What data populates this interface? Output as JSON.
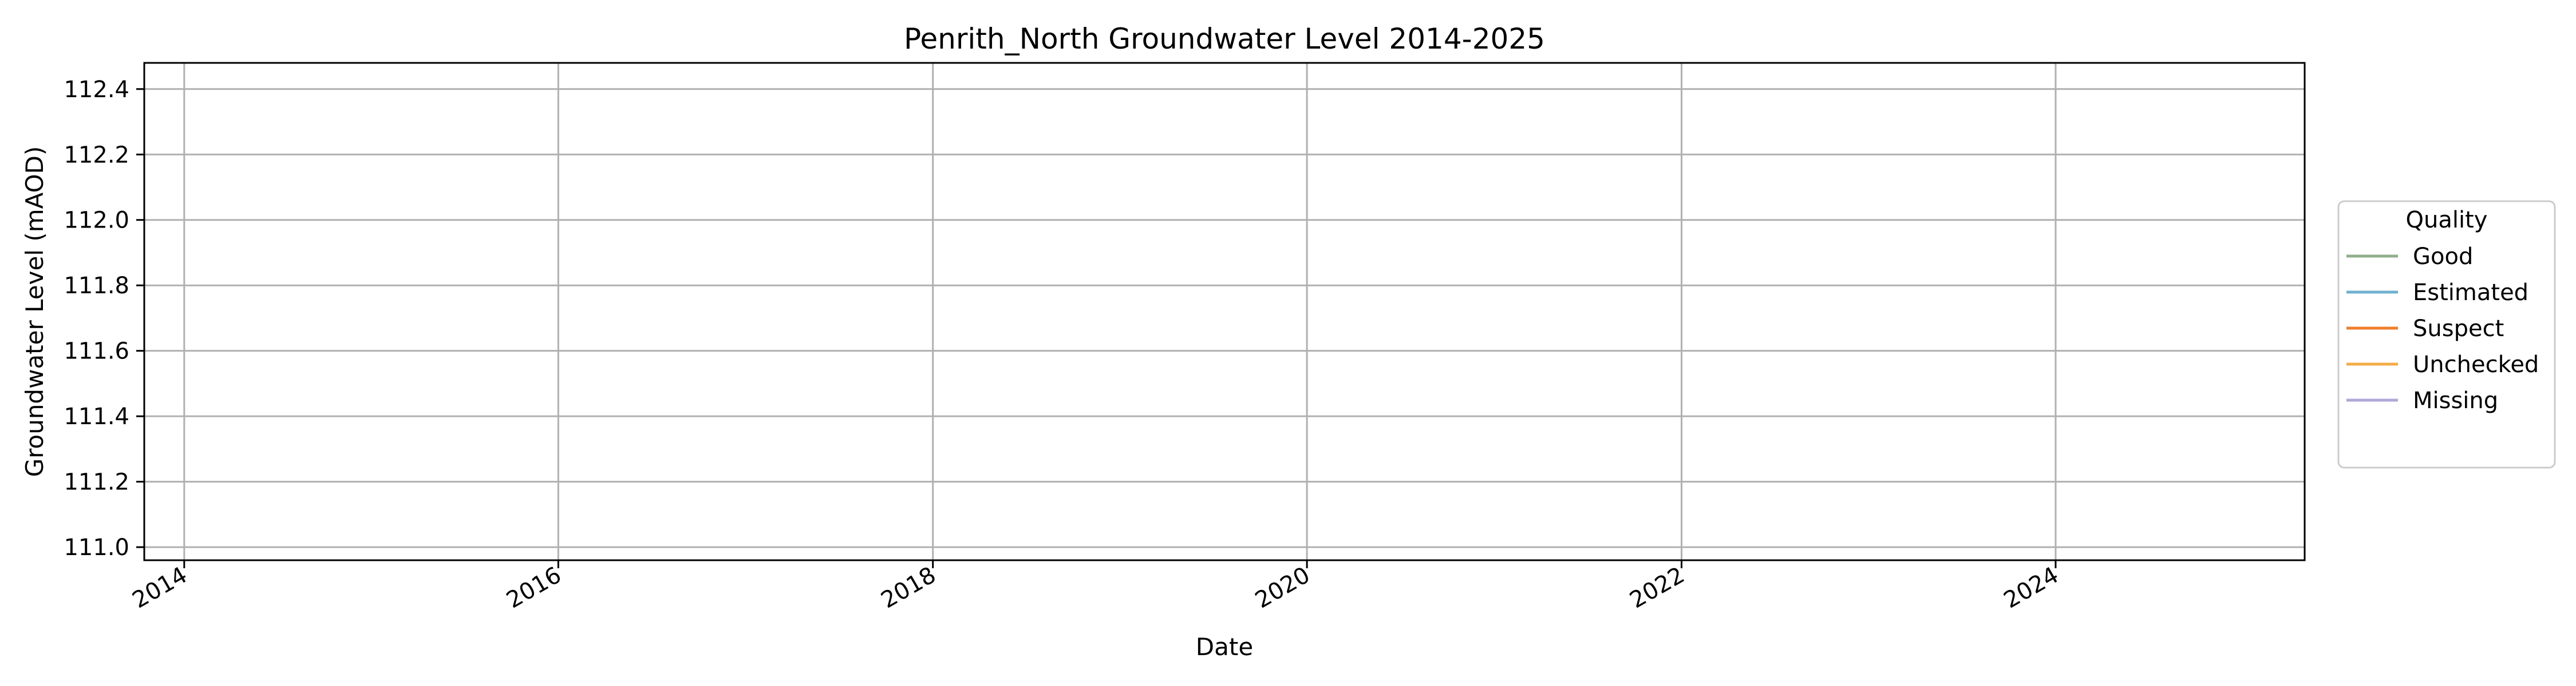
{
  "chart_data": {
    "type": "line",
    "title": "Penrith_North Groundwater Level 2014-2025",
    "xlabel": "Date",
    "ylabel": "Groundwater Level (mAOD)",
    "xlim": [
      "2013-10-15",
      "2025-05-01"
    ],
    "ylim": [
      110.96,
      112.48
    ],
    "x_ticks": [
      "2014",
      "2016",
      "2018",
      "2020",
      "2022",
      "2024"
    ],
    "y_ticks": [
      "111.0",
      "111.2",
      "111.4",
      "111.6",
      "111.8",
      "112.0",
      "112.2",
      "112.4"
    ],
    "grid": true,
    "legend": {
      "title": "Quality",
      "placement": "outside-right",
      "entries": [
        "Good",
        "Estimated",
        "Suspect",
        "Unchecked",
        "Missing"
      ]
    },
    "series": [
      {
        "name": "Good",
        "color": "#8fb08a",
        "x": [],
        "y": []
      },
      {
        "name": "Estimated",
        "color": "#6fb2d0",
        "x": [],
        "y": []
      },
      {
        "name": "Suspect",
        "color": "#f07f2a",
        "x": [],
        "y": []
      },
      {
        "name": "Unchecked",
        "color": "#f5ad48",
        "x": [],
        "y": []
      },
      {
        "name": "Missing",
        "color": "#b0a8d8",
        "x": [],
        "y": []
      }
    ]
  }
}
